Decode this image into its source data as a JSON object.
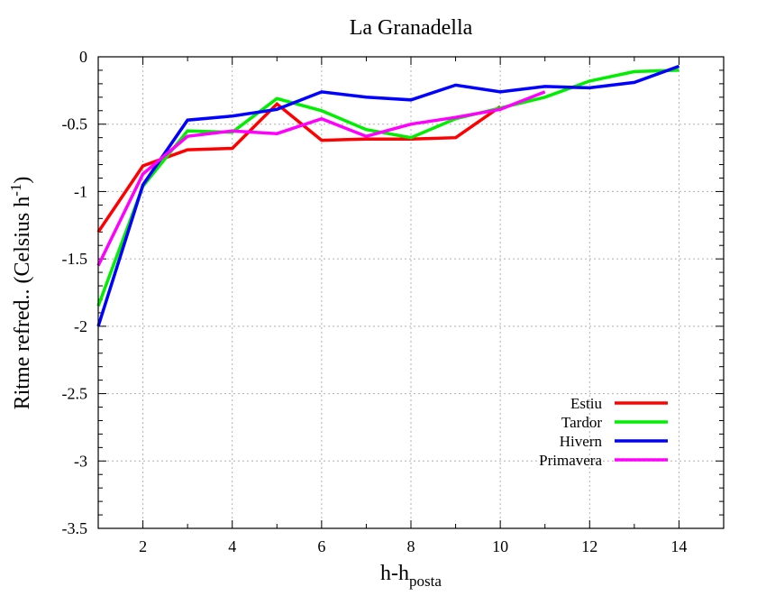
{
  "chart_data": {
    "type": "line",
    "title": "La Granadella",
    "xlabel": {
      "main": "h-h",
      "sub": "posta"
    },
    "ylabel": {
      "main": "Ritme refred.. (Celsius h",
      "sup": "-1",
      "end": ")"
    },
    "xlim": [
      1,
      15
    ],
    "ylim": [
      -3.5,
      0
    ],
    "x_ticks": [
      2,
      4,
      6,
      8,
      10,
      12,
      14
    ],
    "y_ticks": [
      0,
      -0.5,
      -1,
      -1.5,
      -2,
      -2.5,
      -3,
      -3.5
    ],
    "x_tick_labels": [
      "2",
      "4",
      "6",
      "8",
      "10",
      "12",
      "14"
    ],
    "y_tick_labels": [
      "0",
      "-0.5",
      "-1",
      "-1.5",
      "-2",
      "-2.5",
      "-3",
      "-3.5"
    ],
    "grid": true,
    "legend_position": "bottom-right",
    "series": [
      {
        "name": "Estiu",
        "color": "#ff0000",
        "points": [
          [
            1,
            -1.3
          ],
          [
            2,
            -0.81
          ],
          [
            3,
            -0.69
          ],
          [
            4,
            -0.68
          ],
          [
            5,
            -0.35
          ],
          [
            6,
            -0.62
          ],
          [
            7,
            -0.61
          ],
          [
            8,
            -0.61
          ],
          [
            9,
            -0.6
          ],
          [
            10,
            -0.37
          ]
        ]
      },
      {
        "name": "Tardor",
        "color": "#00ee00",
        "points": [
          [
            1,
            -1.85
          ],
          [
            2,
            -0.96
          ],
          [
            3,
            -0.55
          ],
          [
            4,
            -0.56
          ],
          [
            5,
            -0.31
          ],
          [
            6,
            -0.4
          ],
          [
            7,
            -0.54
          ],
          [
            8,
            -0.6
          ],
          [
            9,
            -0.46
          ],
          [
            10,
            -0.38
          ],
          [
            11,
            -0.3
          ],
          [
            12,
            -0.18
          ],
          [
            13,
            -0.11
          ],
          [
            14,
            -0.1
          ]
        ]
      },
      {
        "name": "Hivern",
        "color": "#0000ff",
        "points": [
          [
            1,
            -2.0
          ],
          [
            2,
            -0.95
          ],
          [
            3,
            -0.47
          ],
          [
            4,
            -0.44
          ],
          [
            5,
            -0.39
          ],
          [
            6,
            -0.26
          ],
          [
            7,
            -0.3
          ],
          [
            8,
            -0.32
          ],
          [
            9,
            -0.21
          ],
          [
            10,
            -0.26
          ],
          [
            11,
            -0.22
          ],
          [
            12,
            -0.23
          ],
          [
            13,
            -0.19
          ],
          [
            14,
            -0.07
          ]
        ]
      },
      {
        "name": "Primavera",
        "color": "#ff00ff",
        "points": [
          [
            1,
            -1.55
          ],
          [
            2,
            -0.87
          ],
          [
            3,
            -0.59
          ],
          [
            4,
            -0.55
          ],
          [
            5,
            -0.57
          ],
          [
            6,
            -0.46
          ],
          [
            7,
            -0.59
          ],
          [
            8,
            -0.5
          ],
          [
            9,
            -0.45
          ],
          [
            10,
            -0.39
          ],
          [
            11,
            -0.26
          ]
        ]
      }
    ]
  }
}
